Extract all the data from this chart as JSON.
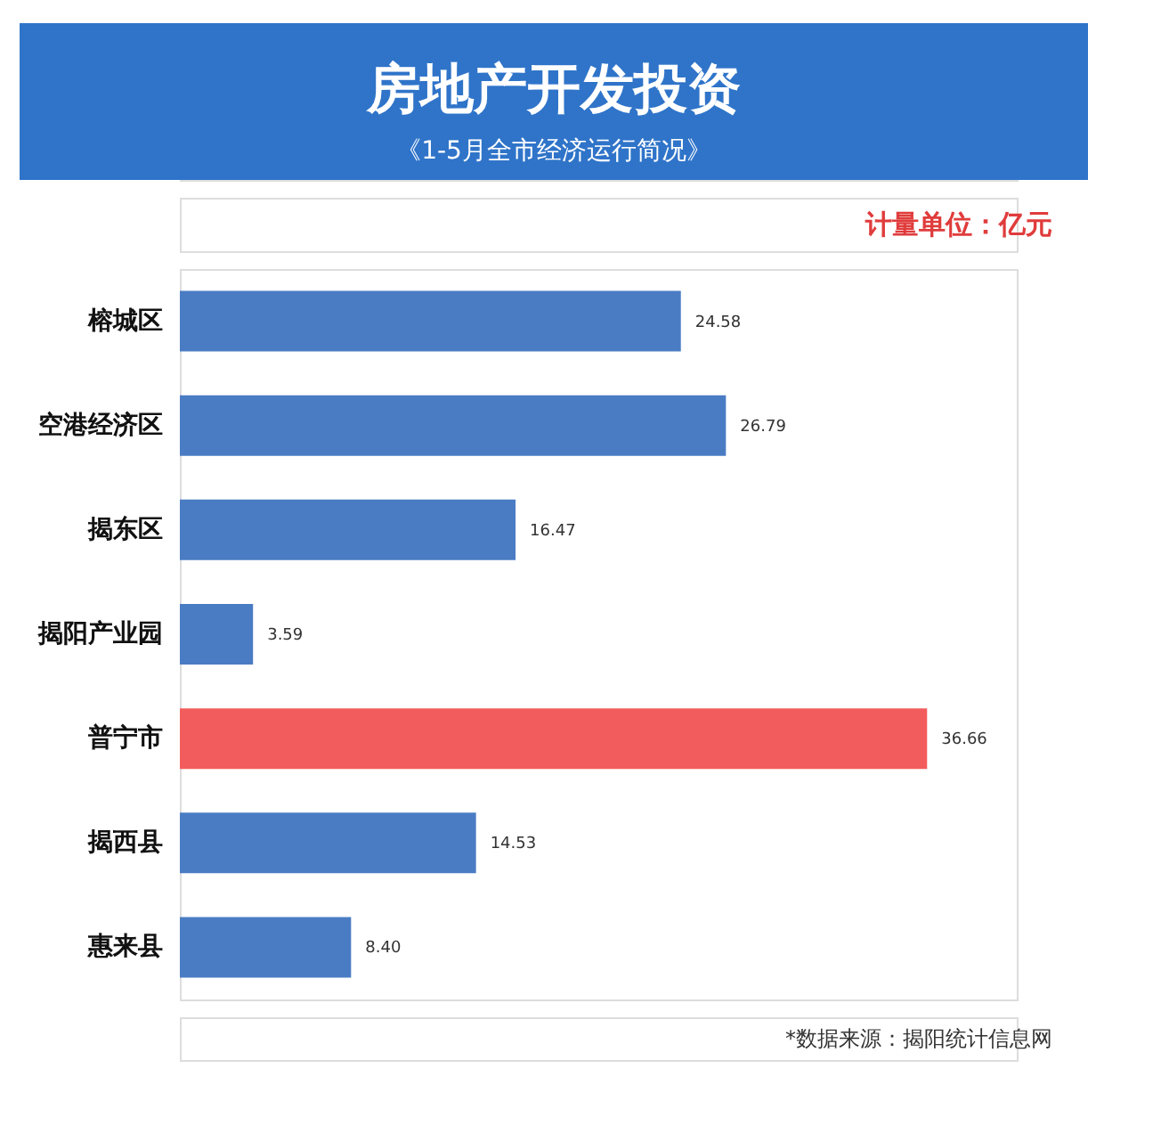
{
  "chart_data": {
    "type": "bar",
    "orientation": "horizontal",
    "title": "房地产开发投资",
    "subtitle": "《1-5月全市经济运行简况》",
    "categories": [
      "榕城区",
      "空港经济区",
      "揭东区",
      "揭阳产业园",
      "普宁市",
      "揭西县",
      "惠来县"
    ],
    "values": [
      24.58,
      26.79,
      16.47,
      3.59,
      36.66,
      14.53,
      8.4
    ],
    "value_labels": [
      "24.58",
      "26.79",
      "16.47",
      "3.59",
      "36.66",
      "14.53",
      "8.40"
    ],
    "colors": [
      "#4a7cc4",
      "#4a7cc4",
      "#4a7cc4",
      "#4a7cc4",
      "#f25c5c",
      "#4a7cc4",
      "#4a7cc4"
    ],
    "annotations": [
      "计量单位：亿元",
      "*数据来源：揭阳统计信息网"
    ],
    "grid": false,
    "legend": false
  }
}
